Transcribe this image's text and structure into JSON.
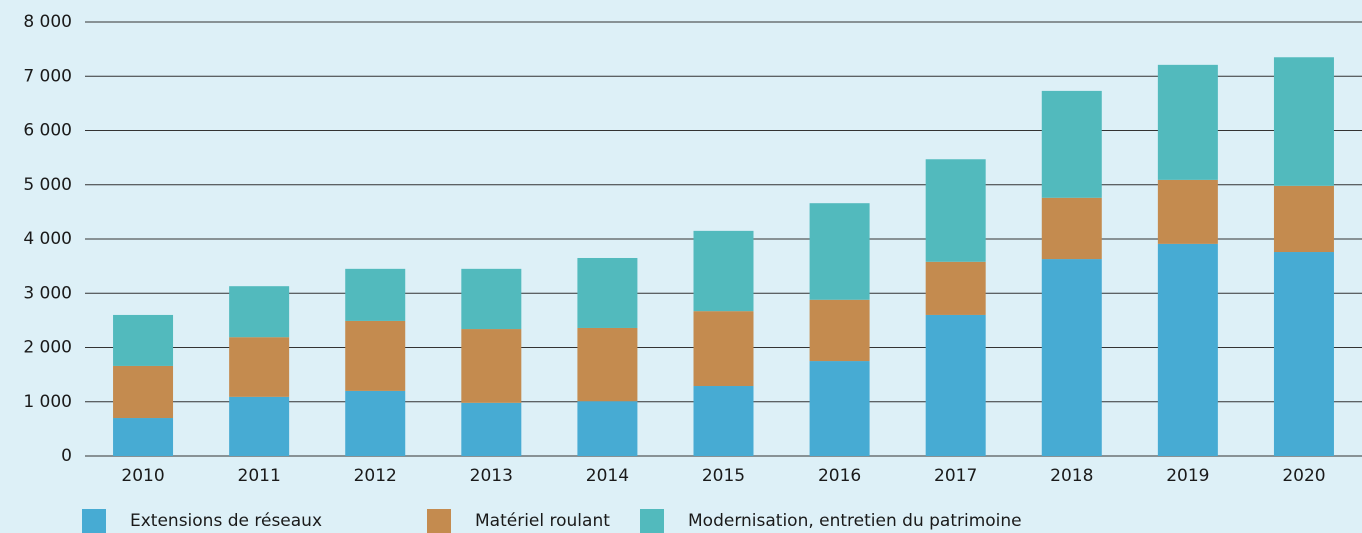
{
  "chart_data": {
    "type": "stacked_bar",
    "categories": [
      "2010",
      "2011",
      "2012",
      "2013",
      "2014",
      "2015",
      "2016",
      "2017",
      "2018",
      "2019",
      "2020"
    ],
    "series": [
      {
        "name": "Extensions de réseaux",
        "color": "#47abd3",
        "values": [
          700,
          1090,
          1200,
          980,
          1010,
          1290,
          1750,
          2600,
          3630,
          3910,
          3760
        ]
      },
      {
        "name": "Matériel roulant",
        "color": "#c48b4f",
        "values": [
          960,
          1100,
          1290,
          1360,
          1350,
          1380,
          1130,
          980,
          1130,
          1180,
          1220
        ]
      },
      {
        "name": "Modernisation, entretien du patrimoine",
        "color": "#52babd",
        "values": [
          940,
          940,
          960,
          1110,
          1290,
          1480,
          1780,
          1890,
          1970,
          2120,
          2370
        ]
      }
    ],
    "ylim": [
      0,
      8000
    ],
    "yticks": [
      0,
      {
        "value": 1000,
        "label": "1 000"
      },
      {
        "value": 2000,
        "label": "2 000"
      },
      {
        "value": 3000,
        "label": "3 000"
      },
      {
        "value": 4000,
        "label": "4 000"
      },
      {
        "value": 5000,
        "label": "5 000"
      },
      {
        "value": 6000,
        "label": "6 000"
      },
      {
        "value": 7000,
        "label": "7 000"
      },
      {
        "value": 8000,
        "label": "8 000"
      }
    ],
    "grid": true,
    "legend": "bottom"
  }
}
